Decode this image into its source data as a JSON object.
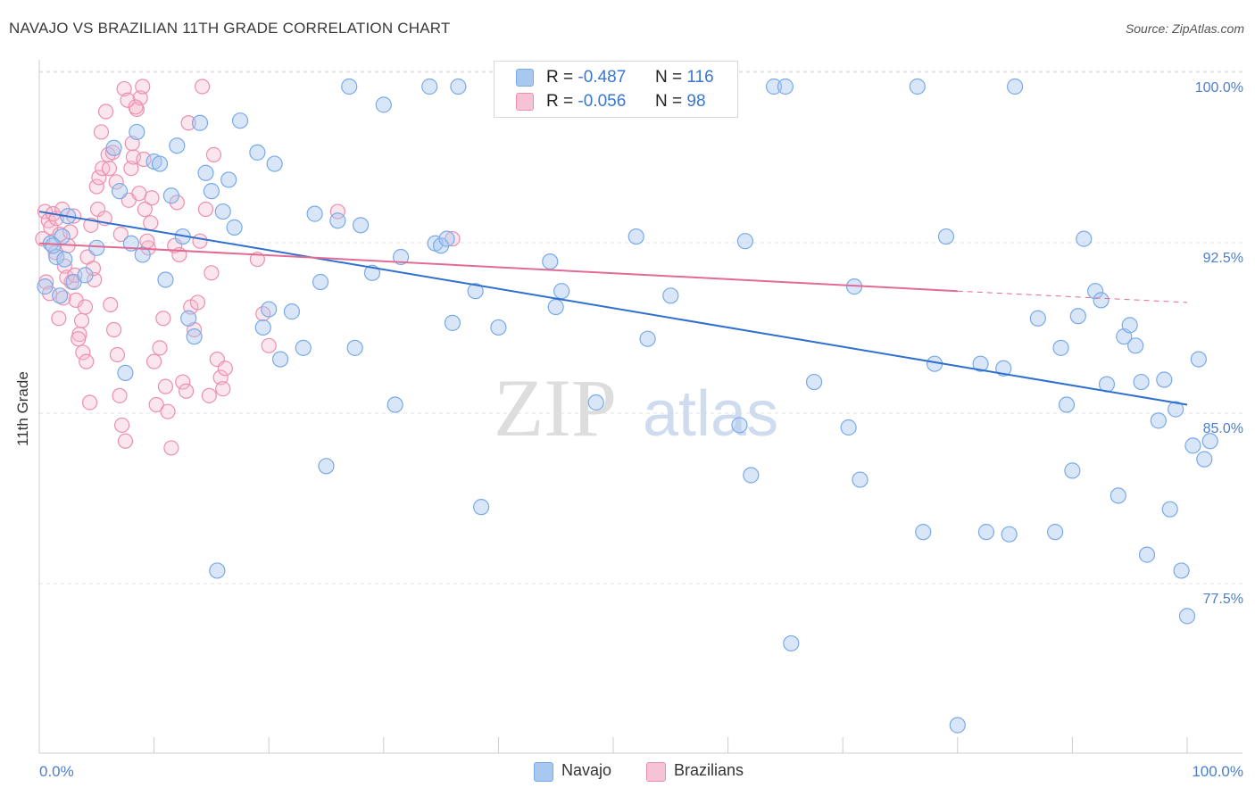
{
  "title": "NAVAJO VS BRAZILIAN 11TH GRADE CORRELATION CHART",
  "source": "Source: ZipAtlas.com",
  "watermark": {
    "zip": "ZIP",
    "atlas": "atlas"
  },
  "legend": {
    "navajo": {
      "r_label": "R =",
      "r_value": "-0.487",
      "n_label": "N =",
      "n_value": "116",
      "color": "#a9c8f0"
    },
    "brazilians": {
      "r_label": "R =",
      "r_value": "-0.056",
      "n_label": "N =",
      "n_value": "98",
      "color": "#f5b6cb"
    }
  },
  "bottom_legend": {
    "navajo": "Navajo",
    "brazilians": "Brazilians"
  },
  "chart_data": {
    "type": "scatter",
    "title": "NAVAJO VS BRAZILIAN 11TH GRADE CORRELATION CHART",
    "xlabel": "",
    "ylabel": "11th Grade",
    "x_tick_labels": [
      "0.0%",
      "100.0%"
    ],
    "y_tick_labels": [
      "100.0%",
      "92.5%",
      "85.0%",
      "77.5%"
    ],
    "y_ticks": [
      100.0,
      92.5,
      85.0,
      77.5
    ],
    "xlim": [
      0,
      100
    ],
    "ylim": [
      71.5,
      101.3
    ],
    "grid": true,
    "series": [
      {
        "name": "Navajo",
        "color": "#7aaae8",
        "fill": "#a9c8f0",
        "trend": {
          "x0": 0,
          "y0": 94.5,
          "x1": 100,
          "y1": 86.0
        },
        "points": [
          [
            0.5,
            91.2
          ],
          [
            1.0,
            93.1
          ],
          [
            1.5,
            92.5
          ],
          [
            2.0,
            93.4
          ],
          [
            2.5,
            94.3
          ],
          [
            1.8,
            90.8
          ],
          [
            3.0,
            91.4
          ],
          [
            4.0,
            91.7
          ],
          [
            5.0,
            92.9
          ],
          [
            6.5,
            97.3
          ],
          [
            7.0,
            95.4
          ],
          [
            7.5,
            87.4
          ],
          [
            8.0,
            93.1
          ],
          [
            8.5,
            98.0
          ],
          [
            9.0,
            92.6
          ],
          [
            10.0,
            96.7
          ],
          [
            10.5,
            96.6
          ],
          [
            11.0,
            91.5
          ],
          [
            11.5,
            95.2
          ],
          [
            12.0,
            97.4
          ],
          [
            12.5,
            93.4
          ],
          [
            13.0,
            89.8
          ],
          [
            13.5,
            89.0
          ],
          [
            14.0,
            98.4
          ],
          [
            14.5,
            96.2
          ],
          [
            15.0,
            95.4
          ],
          [
            15.5,
            78.7
          ],
          [
            16.0,
            94.5
          ],
          [
            16.5,
            95.9
          ],
          [
            17.0,
            93.8
          ],
          [
            17.5,
            98.5
          ],
          [
            19.0,
            97.1
          ],
          [
            19.5,
            89.4
          ],
          [
            20.0,
            90.2
          ],
          [
            20.5,
            96.6
          ],
          [
            21.0,
            88.0
          ],
          [
            22.0,
            90.1
          ],
          [
            23.0,
            88.5
          ],
          [
            24.0,
            94.4
          ],
          [
            24.5,
            91.4
          ],
          [
            25.0,
            83.3
          ],
          [
            26.0,
            94.1
          ],
          [
            27.0,
            100.0
          ],
          [
            27.5,
            88.5
          ],
          [
            28.0,
            93.9
          ],
          [
            29.0,
            91.8
          ],
          [
            30.0,
            99.2
          ],
          [
            31.0,
            86.0
          ],
          [
            31.5,
            92.5
          ],
          [
            34.0,
            100.0
          ],
          [
            34.5,
            93.1
          ],
          [
            35.0,
            93.0
          ],
          [
            35.5,
            93.3
          ],
          [
            36.0,
            89.6
          ],
          [
            36.5,
            100.0
          ],
          [
            38.0,
            91.0
          ],
          [
            38.5,
            81.5
          ],
          [
            40.0,
            89.4
          ],
          [
            44.5,
            92.3
          ],
          [
            45.0,
            90.3
          ],
          [
            45.5,
            91.0
          ],
          [
            48.5,
            86.1
          ],
          [
            52.0,
            93.4
          ],
          [
            53.0,
            88.9
          ],
          [
            55.0,
            90.8
          ],
          [
            57.5,
            100.0
          ],
          [
            58.0,
            100.0
          ],
          [
            59.5,
            100.0
          ],
          [
            61.0,
            85.1
          ],
          [
            61.5,
            93.2
          ],
          [
            62.0,
            82.9
          ],
          [
            64.0,
            100.0
          ],
          [
            65.0,
            100.0
          ],
          [
            65.5,
            75.5
          ],
          [
            67.5,
            87.0
          ],
          [
            70.5,
            85.0
          ],
          [
            71.0,
            91.2
          ],
          [
            71.5,
            82.7
          ],
          [
            76.5,
            100.0
          ],
          [
            77.0,
            80.4
          ],
          [
            78.0,
            87.8
          ],
          [
            79.0,
            93.4
          ],
          [
            80.0,
            71.9
          ],
          [
            82.0,
            87.8
          ],
          [
            82.5,
            80.4
          ],
          [
            84.0,
            87.6
          ],
          [
            84.5,
            80.3
          ],
          [
            85.0,
            100.0
          ],
          [
            87.0,
            89.8
          ],
          [
            88.5,
            80.4
          ],
          [
            89.0,
            88.5
          ],
          [
            89.5,
            86.0
          ],
          [
            90.0,
            83.1
          ],
          [
            90.5,
            89.9
          ],
          [
            91.0,
            93.3
          ],
          [
            92.0,
            91.0
          ],
          [
            92.5,
            90.6
          ],
          [
            93.0,
            86.9
          ],
          [
            94.0,
            82.0
          ],
          [
            94.5,
            89.0
          ],
          [
            95.0,
            89.5
          ],
          [
            95.5,
            88.6
          ],
          [
            96.0,
            87.0
          ],
          [
            96.5,
            79.4
          ],
          [
            97.5,
            85.3
          ],
          [
            98.0,
            87.1
          ],
          [
            98.5,
            81.4
          ],
          [
            99.0,
            85.8
          ],
          [
            99.5,
            78.7
          ],
          [
            100.0,
            76.7
          ],
          [
            100.5,
            84.2
          ],
          [
            101.0,
            88.0
          ],
          [
            101.5,
            83.6
          ],
          [
            102.0,
            84.4
          ],
          [
            1.2,
            93.0
          ],
          [
            2.2,
            92.4
          ]
        ]
      },
      {
        "name": "Brazilians",
        "color": "#ec8fae",
        "fill": "#f5b6cb",
        "trend": {
          "x0": 0,
          "y0": 93.1,
          "x1": 80,
          "y1": 91.0
        },
        "trend_dashed": {
          "x0": 80,
          "y0": 91.0,
          "x1": 100,
          "y1": 90.5
        },
        "points": [
          [
            0.3,
            93.3
          ],
          [
            0.5,
            94.5
          ],
          [
            0.8,
            94.1
          ],
          [
            1.0,
            93.8
          ],
          [
            1.2,
            94.4
          ],
          [
            1.5,
            94.2
          ],
          [
            1.8,
            93.5
          ],
          [
            2.0,
            94.6
          ],
          [
            2.2,
            92.1
          ],
          [
            2.5,
            93.0
          ],
          [
            2.8,
            91.4
          ],
          [
            3.0,
            94.3
          ],
          [
            3.2,
            90.6
          ],
          [
            3.5,
            89.1
          ],
          [
            3.8,
            88.3
          ],
          [
            4.0,
            90.3
          ],
          [
            4.2,
            92.5
          ],
          [
            4.5,
            93.9
          ],
          [
            4.8,
            91.5
          ],
          [
            5.0,
            95.6
          ],
          [
            5.2,
            96.0
          ],
          [
            5.5,
            96.4
          ],
          [
            5.8,
            98.9
          ],
          [
            6.0,
            97.0
          ],
          [
            6.2,
            90.4
          ],
          [
            6.5,
            89.3
          ],
          [
            6.8,
            88.2
          ],
          [
            7.0,
            86.4
          ],
          [
            7.2,
            85.1
          ],
          [
            7.5,
            84.4
          ],
          [
            7.8,
            95.0
          ],
          [
            8.0,
            96.4
          ],
          [
            8.2,
            96.9
          ],
          [
            8.5,
            99.0
          ],
          [
            8.8,
            99.5
          ],
          [
            9.0,
            100.0
          ],
          [
            9.2,
            94.6
          ],
          [
            9.5,
            92.9
          ],
          [
            9.8,
            95.1
          ],
          [
            10.0,
            87.9
          ],
          [
            10.2,
            86.0
          ],
          [
            10.5,
            88.5
          ],
          [
            10.8,
            89.8
          ],
          [
            11.0,
            86.8
          ],
          [
            11.2,
            85.7
          ],
          [
            11.5,
            84.1
          ],
          [
            11.8,
            93.0
          ],
          [
            12.0,
            94.9
          ],
          [
            12.2,
            92.6
          ],
          [
            12.5,
            87.0
          ],
          [
            12.8,
            86.6
          ],
          [
            13.0,
            98.4
          ],
          [
            13.2,
            90.3
          ],
          [
            13.5,
            89.3
          ],
          [
            13.8,
            90.5
          ],
          [
            14.0,
            93.2
          ],
          [
            14.2,
            100.0
          ],
          [
            14.5,
            94.6
          ],
          [
            14.8,
            86.4
          ],
          [
            15.0,
            91.8
          ],
          [
            15.2,
            97.0
          ],
          [
            15.5,
            88.0
          ],
          [
            15.8,
            87.2
          ],
          [
            16.0,
            86.7
          ],
          [
            16.2,
            87.6
          ],
          [
            19.0,
            92.4
          ],
          [
            19.5,
            90.0
          ],
          [
            20.0,
            88.6
          ],
          [
            26.0,
            94.5
          ],
          [
            36.0,
            93.3
          ],
          [
            0.6,
            91.4
          ],
          [
            0.9,
            90.9
          ],
          [
            1.4,
            92.7
          ],
          [
            1.7,
            89.8
          ],
          [
            2.1,
            90.7
          ],
          [
            2.4,
            91.6
          ],
          [
            2.7,
            93.6
          ],
          [
            3.1,
            91.7
          ],
          [
            3.4,
            88.9
          ],
          [
            3.7,
            89.7
          ],
          [
            4.1,
            87.9
          ],
          [
            4.4,
            86.1
          ],
          [
            4.7,
            92.0
          ],
          [
            5.1,
            94.6
          ],
          [
            5.4,
            98.0
          ],
          [
            5.7,
            94.2
          ],
          [
            6.1,
            96.4
          ],
          [
            6.4,
            97.1
          ],
          [
            6.7,
            95.8
          ],
          [
            7.1,
            93.5
          ],
          [
            7.4,
            99.9
          ],
          [
            7.7,
            99.4
          ],
          [
            8.1,
            97.5
          ],
          [
            8.4,
            99.1
          ],
          [
            8.7,
            95.3
          ],
          [
            9.1,
            96.8
          ],
          [
            9.4,
            93.2
          ],
          [
            9.7,
            94.0
          ]
        ]
      }
    ]
  }
}
